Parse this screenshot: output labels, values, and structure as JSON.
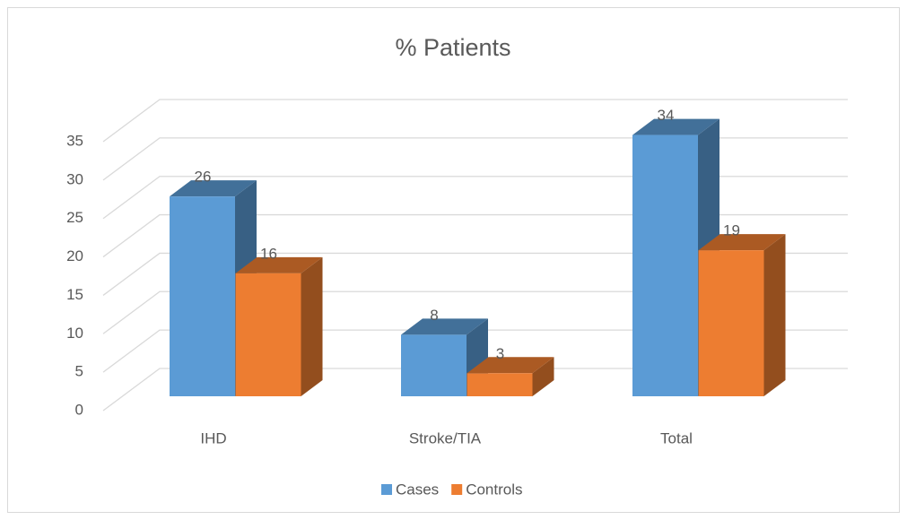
{
  "chart_data": {
    "type": "bar3d",
    "title": "% Patients",
    "categories": [
      "IHD",
      "Stroke/TIA",
      "Total"
    ],
    "series": [
      {
        "name": "Cases",
        "color": "#5b9bd5",
        "values": [
          26,
          8,
          34
        ]
      },
      {
        "name": "Controls",
        "color": "#ed7d31",
        "values": [
          16,
          3,
          19
        ]
      }
    ],
    "ylim": [
      0,
      35
    ],
    "yticks": [
      0,
      5,
      10,
      15,
      20,
      25,
      30,
      35
    ],
    "grid": true,
    "legend": "bottom"
  }
}
